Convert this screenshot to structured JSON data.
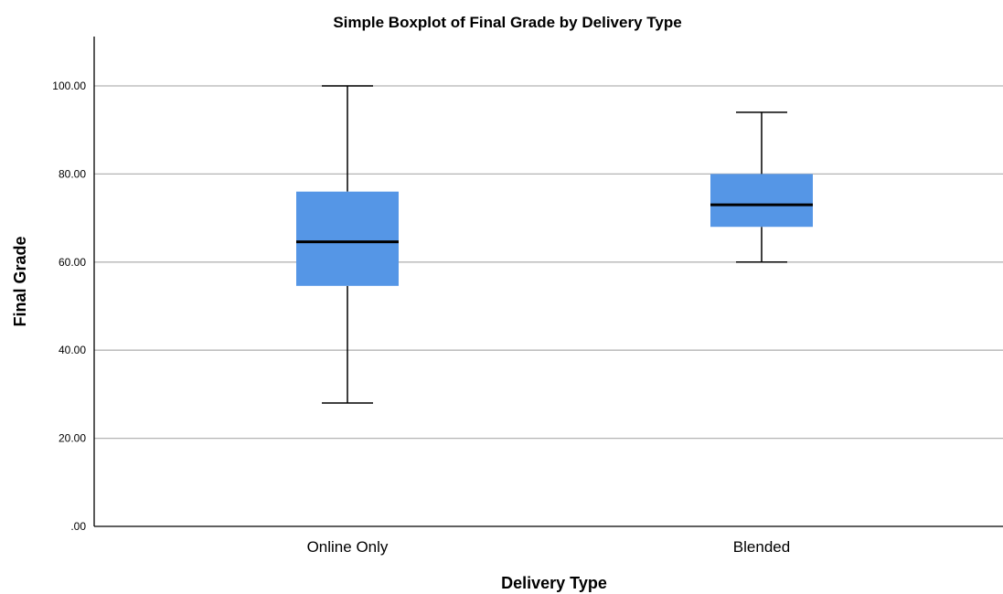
{
  "chart_data": {
    "type": "boxplot",
    "title": "Simple Boxplot of Final Grade by Delivery Type",
    "xlabel": "Delivery Type",
    "ylabel": "Final Grade",
    "ylim": [
      0,
      110
    ],
    "yticks": [
      0,
      20,
      40,
      60,
      80,
      100
    ],
    "ytick_labels": [
      ".00",
      "20.00",
      "40.00",
      "60.00",
      "80.00",
      "100.00"
    ],
    "grid": true,
    "categories": [
      "Online Only",
      "Blended"
    ],
    "boxes": [
      {
        "category": "Online Only",
        "min": 28,
        "q1": 54.6,
        "median": 64.6,
        "q3": 76,
        "max": 100
      },
      {
        "category": "Blended",
        "min": 60,
        "q1": 68,
        "median": 73,
        "q3": 80,
        "max": 94
      }
    ],
    "colors": {
      "box_fill": "#5596e6",
      "median_line": "#000000",
      "whisker": "#000000",
      "gridline": "#b4b4b4",
      "axis": "#000000"
    }
  }
}
